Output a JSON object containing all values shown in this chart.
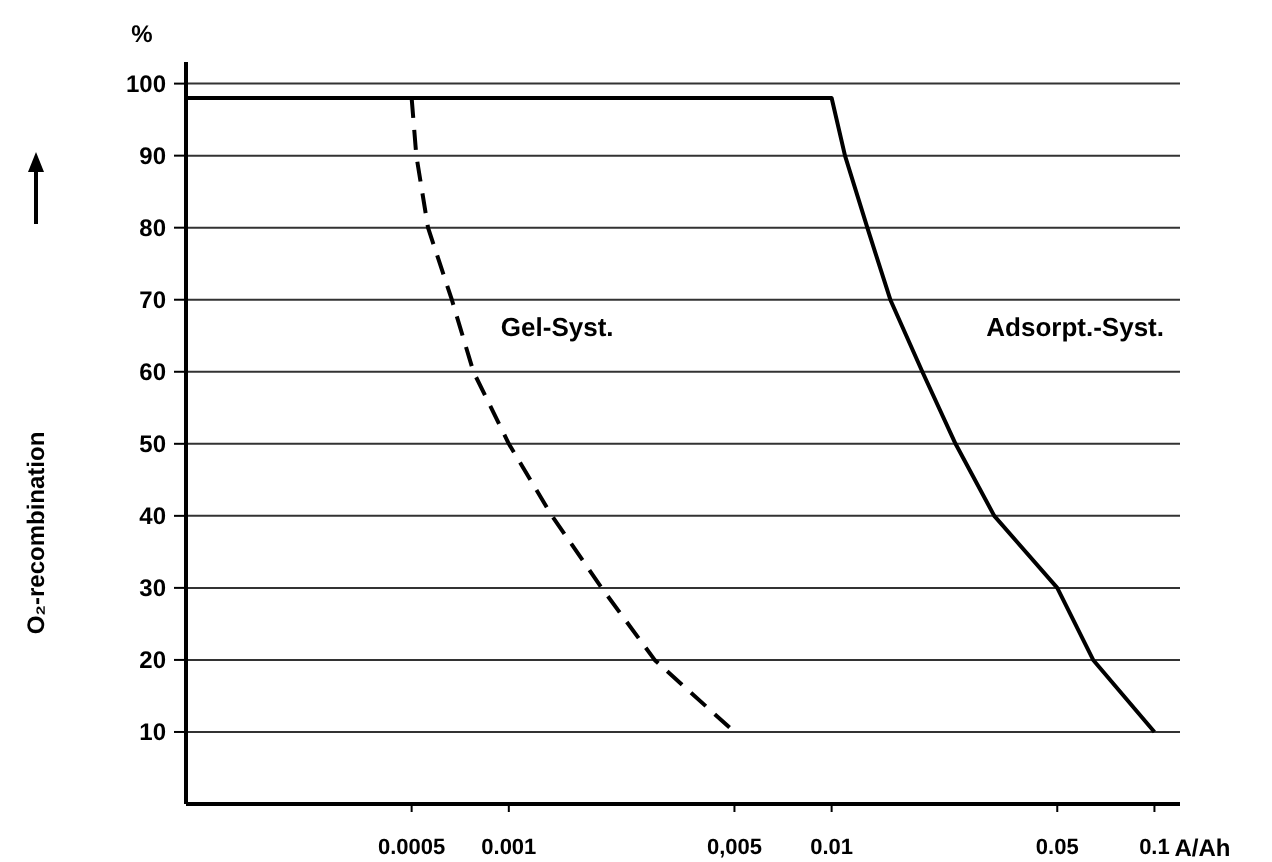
{
  "chart_data": {
    "type": "line",
    "xlabel": "A/Ah",
    "ylabel": "O₂-recombination",
    "annotations": [
      "%"
    ],
    "log": "x",
    "xlim": [
      0.0001,
      0.12
    ],
    "ylim": [
      0,
      103
    ],
    "xticks": [
      0.0005,
      0.001,
      {
        "value": 0.005,
        "label": "0,005"
      },
      0.01,
      0.05,
      0.1
    ],
    "yticks": [
      10,
      20,
      30,
      40,
      50,
      60,
      70,
      80,
      90,
      100
    ],
    "grid": "y",
    "marker": "none",
    "series": [
      {
        "name": "Gel-Syst.",
        "color": "#000000",
        "line_style": "dashed",
        "x": [
          0.0005,
          0.000517,
          0.000562,
          0.000666,
          0.000777,
          0.001,
          0.00136,
          0.00194,
          0.00283,
          0.005
        ],
        "values": [
          98,
          90,
          80,
          70,
          60,
          50,
          40,
          30,
          20,
          10
        ]
      },
      {
        "name": "Adsorpt.-Syst.",
        "color": "#000000",
        "line_style": "solid",
        "x": [
          0.0001,
          0.01,
          0.011,
          0.0129,
          0.0152,
          0.0191,
          0.0242,
          0.0319,
          0.05,
          0.0646,
          0.1
        ],
        "values": [
          98,
          98,
          90,
          80,
          70,
          60,
          50,
          40,
          30,
          20,
          10
        ]
      }
    ]
  }
}
